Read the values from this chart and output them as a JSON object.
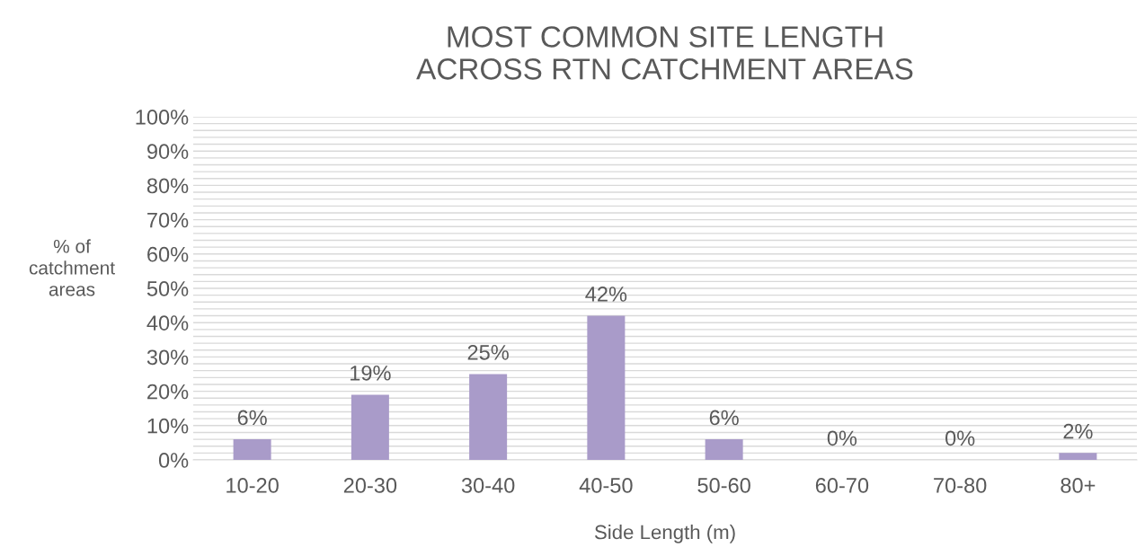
{
  "chart_data": {
    "type": "bar",
    "title": "MOST COMMON SITE LENGTH\nACROSS RTN CATCHMENT AREAS",
    "xlabel": "Side Length (m)",
    "ylabel": "% of\ncatchment\nareas",
    "categories": [
      "10-20",
      "20-30",
      "30-40",
      "40-50",
      "50-60",
      "60-70",
      "70-80",
      "80+"
    ],
    "values": [
      6,
      19,
      25,
      42,
      6,
      0,
      0,
      2
    ],
    "color": "#a99bc9",
    "value_labels": [
      "6%",
      "19%",
      "25%",
      "42%",
      "6%",
      "0%",
      "0%",
      "2%"
    ],
    "ylim": [
      0,
      100
    ],
    "yticks": [
      {
        "value": 0,
        "label": "0%"
      },
      {
        "value": 2,
        "label": null
      },
      {
        "value": 4,
        "label": null
      },
      {
        "value": 6,
        "label": null
      },
      {
        "value": 8,
        "label": null
      },
      {
        "value": 10,
        "label": "10%"
      },
      {
        "value": 12,
        "label": null
      },
      {
        "value": 14,
        "label": null
      },
      {
        "value": 16,
        "label": null
      },
      {
        "value": 18,
        "label": null
      },
      {
        "value": 20,
        "label": "20%"
      },
      {
        "value": 22,
        "label": null
      },
      {
        "value": 24,
        "label": null
      },
      {
        "value": 26,
        "label": null
      },
      {
        "value": 28,
        "label": null
      },
      {
        "value": 30,
        "label": "30%"
      },
      {
        "value": 32,
        "label": null
      },
      {
        "value": 34,
        "label": null
      },
      {
        "value": 36,
        "label": null
      },
      {
        "value": 38,
        "label": null
      },
      {
        "value": 40,
        "label": "40%"
      },
      {
        "value": 42,
        "label": null
      },
      {
        "value": 44,
        "label": null
      },
      {
        "value": 46,
        "label": null
      },
      {
        "value": 48,
        "label": null
      },
      {
        "value": 50,
        "label": "50%"
      },
      {
        "value": 52,
        "label": null
      },
      {
        "value": 54,
        "label": null
      },
      {
        "value": 56,
        "label": null
      },
      {
        "value": 58,
        "label": null
      },
      {
        "value": 60,
        "label": "60%"
      },
      {
        "value": 62,
        "label": null
      },
      {
        "value": 64,
        "label": null
      },
      {
        "value": 66,
        "label": null
      },
      {
        "value": 68,
        "label": null
      },
      {
        "value": 70,
        "label": "70%"
      },
      {
        "value": 72,
        "label": null
      },
      {
        "value": 74,
        "label": null
      },
      {
        "value": 76,
        "label": null
      },
      {
        "value": 78,
        "label": null
      },
      {
        "value": 80,
        "label": "80%"
      },
      {
        "value": 82,
        "label": null
      },
      {
        "value": 84,
        "label": null
      },
      {
        "value": 86,
        "label": null
      },
      {
        "value": 88,
        "label": null
      },
      {
        "value": 90,
        "label": "90%"
      },
      {
        "value": 92,
        "label": null
      },
      {
        "value": 94,
        "label": null
      },
      {
        "value": 96,
        "label": null
      },
      {
        "value": 98,
        "label": null
      },
      {
        "value": 100,
        "label": "100%"
      }
    ],
    "grid": "y"
  }
}
